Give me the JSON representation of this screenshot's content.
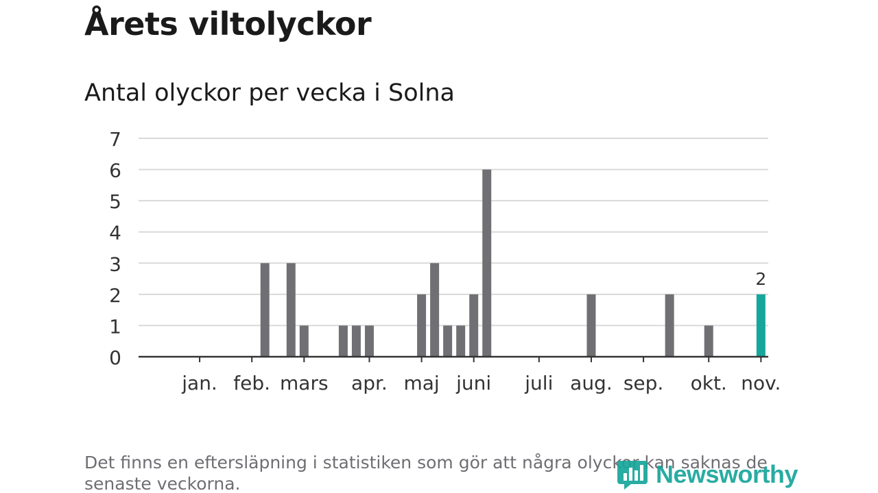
{
  "header": {
    "title": "Årets viltolyckor",
    "subtitle": "Antal olyckor per vecka i Solna"
  },
  "footnote": "Det finns en eftersläpning i statistiken som gör att några olyckor kan saknas de senaste veckorna.",
  "logo": {
    "text": "Newsworthy"
  },
  "colors": {
    "bar": "#707074",
    "highlight": "#17a69b",
    "grid": "#d9d9d9",
    "axis": "#333333"
  },
  "chart_data": {
    "type": "bar",
    "title": "Antal olyckor per vecka i Solna",
    "xlabel": "",
    "ylabel": "",
    "ylim": [
      0,
      7
    ],
    "yticks": [
      "0",
      "1",
      "2",
      "3",
      "4",
      "5",
      "6",
      "7"
    ],
    "weeks": 48,
    "month_labels": [
      {
        "label": "jan.",
        "week": 3
      },
      {
        "label": "feb.",
        "week": 7
      },
      {
        "label": "mars",
        "week": 11
      },
      {
        "label": "apr.",
        "week": 16
      },
      {
        "label": "maj",
        "week": 20
      },
      {
        "label": "juni",
        "week": 24
      },
      {
        "label": "juli",
        "week": 29
      },
      {
        "label": "aug.",
        "week": 33
      },
      {
        "label": "sep.",
        "week": 37
      },
      {
        "label": "okt.",
        "week": 42
      },
      {
        "label": "nov.",
        "week": 46
      }
    ],
    "series": [
      {
        "name": "Antal olyckor",
        "bars": [
          {
            "week": 8,
            "value": 3
          },
          {
            "week": 10,
            "value": 3
          },
          {
            "week": 11,
            "value": 1
          },
          {
            "week": 14,
            "value": 1
          },
          {
            "week": 15,
            "value": 1
          },
          {
            "week": 16,
            "value": 1
          },
          {
            "week": 20,
            "value": 2
          },
          {
            "week": 21,
            "value": 3
          },
          {
            "week": 22,
            "value": 1
          },
          {
            "week": 23,
            "value": 1
          },
          {
            "week": 24,
            "value": 2
          },
          {
            "week": 25,
            "value": 6
          },
          {
            "week": 33,
            "value": 2
          },
          {
            "week": 39,
            "value": 2
          },
          {
            "week": 42,
            "value": 1
          },
          {
            "week": 46,
            "value": 2,
            "highlight": true,
            "label": "2"
          }
        ]
      }
    ]
  }
}
